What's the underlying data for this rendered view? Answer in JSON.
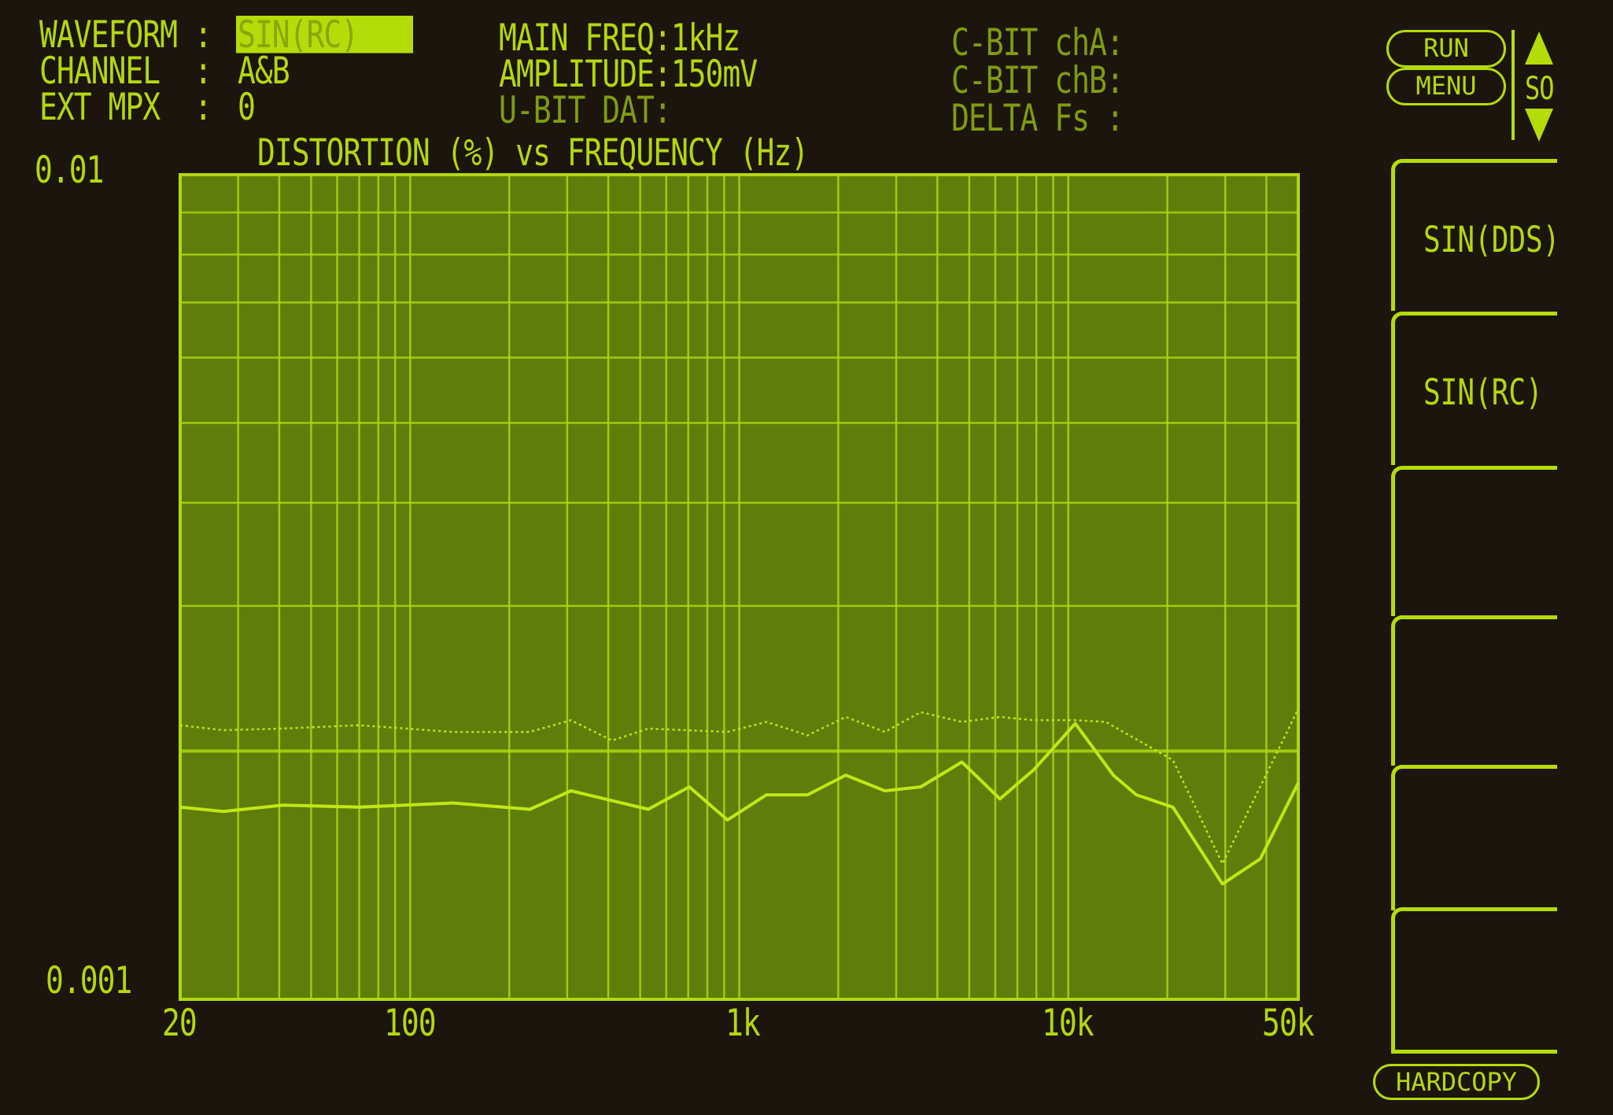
{
  "header": {
    "waveform_label": "WAVEFORM :",
    "waveform_value": "SIN(RC)",
    "channel_label": "CHANNEL  :",
    "channel_value": "A&B",
    "ext_mpx_label": "EXT MPX  :",
    "ext_mpx_value": "0",
    "main_freq": "MAIN FREQ:1kHz",
    "amplitude": "AMPLITUDE:150mV",
    "u_bit": "U-BIT DAT:",
    "cbit_a": "C-BIT chA:",
    "cbit_b": "C-BIT chB:",
    "delta_fs": "DELTA Fs :"
  },
  "buttons": {
    "run": "RUN",
    "menu": "MENU",
    "scroll": "SO",
    "hardcopy": "HARDCOPY"
  },
  "softkeys": [
    "SIN(DDS)",
    "SIN(RC)",
    "",
    "",
    "",
    ""
  ],
  "colors": {
    "background": "#1b150d",
    "plot_fill": "#5f7d0a",
    "trace": "#c0e814",
    "grid": "#b0d810",
    "text": "#b4d80c"
  },
  "chart_data": {
    "type": "line",
    "title": "DISTORTION (%) vs FREQUENCY (Hz)",
    "x_scale": "log",
    "y_scale": "log",
    "xlim": [
      20,
      50000
    ],
    "ylim": [
      0.001,
      0.01
    ],
    "x_tick_labels": [
      "20",
      "100",
      "1k",
      "10k",
      "50k"
    ],
    "x_ticks": [
      20,
      100,
      1000,
      10000,
      50000
    ],
    "y_tick_labels": [
      "0.01",
      "0.001"
    ],
    "y_ticks": [
      0.01,
      0.001
    ],
    "grid": true,
    "series": [
      {
        "style": "solid",
        "x": [
          20,
          27,
          41,
          70,
          135,
          231,
          308,
          529,
          705,
          921,
          1210,
          1614,
          2107,
          2770,
          3560,
          4750,
          6200,
          7870,
          10500,
          13700,
          16100,
          20800,
          29400,
          38300,
          50000
        ],
        "y": [
          0.00171,
          0.00169,
          0.00172,
          0.00171,
          0.00173,
          0.0017,
          0.00179,
          0.0017,
          0.00181,
          0.00165,
          0.00177,
          0.00177,
          0.00187,
          0.00179,
          0.00181,
          0.00194,
          0.00175,
          0.0019,
          0.00216,
          0.00187,
          0.00177,
          0.00171,
          0.00138,
          0.00148,
          0.00183
        ]
      },
      {
        "style": "dotted",
        "x": [
          20,
          27,
          41,
          70,
          135,
          231,
          308,
          411,
          529,
          921,
          1210,
          1614,
          2107,
          2770,
          3560,
          4750,
          6200,
          7870,
          10500,
          13000,
          20800,
          29400,
          50000
        ],
        "y": [
          0.00215,
          0.00212,
          0.00213,
          0.00215,
          0.00211,
          0.00211,
          0.00218,
          0.00206,
          0.00213,
          0.00211,
          0.00217,
          0.00209,
          0.0022,
          0.00211,
          0.00223,
          0.00217,
          0.0022,
          0.00218,
          0.00218,
          0.00217,
          0.00195,
          0.00146,
          0.00225
        ]
      }
    ]
  }
}
